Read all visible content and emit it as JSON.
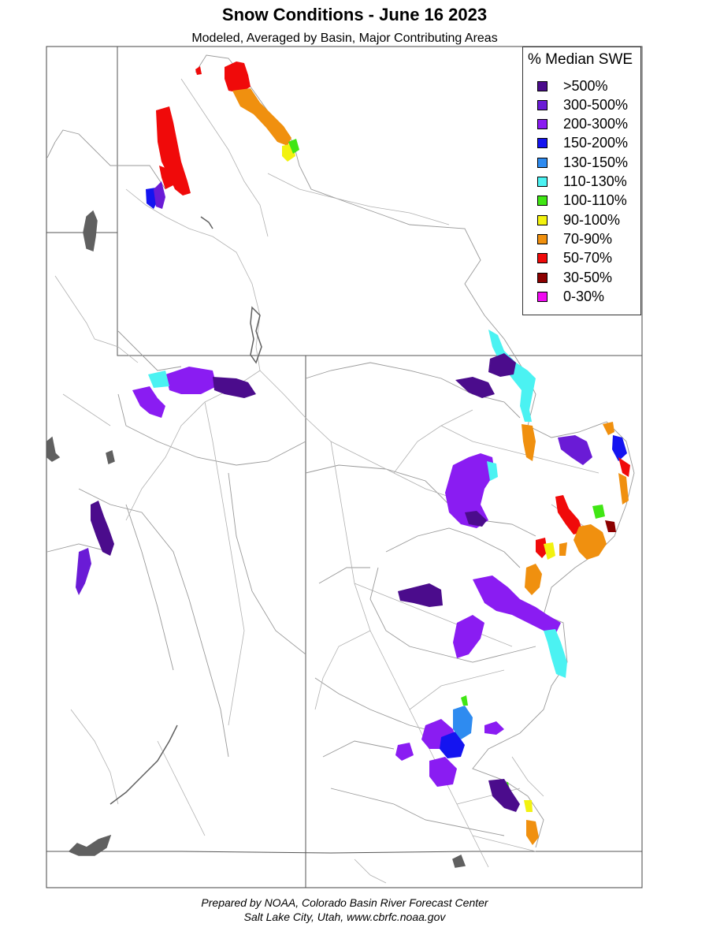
{
  "header": {
    "title": "Snow Conditions - June 16 2023",
    "subtitle": "Modeled, Averaged by Basin, Major Contributing Areas"
  },
  "legend": {
    "title": "% Median SWE",
    "items": [
      {
        "label": ">500%",
        "color": "#4b0c8c"
      },
      {
        "label": "300-500%",
        "color": "#6a1bd6"
      },
      {
        "label": "200-300%",
        "color": "#8a1cf2"
      },
      {
        "label": "150-200%",
        "color": "#1414f0"
      },
      {
        "label": "130-150%",
        "color": "#2e8bf0"
      },
      {
        "label": "110-130%",
        "color": "#4bf2f2"
      },
      {
        "label": "100-110%",
        "color": "#40e614"
      },
      {
        "label": "90-100%",
        "color": "#f2f20f"
      },
      {
        "label": "70-90%",
        "color": "#f0900f"
      },
      {
        "label": "50-70%",
        "color": "#f00a0a"
      },
      {
        "label": "30-50%",
        "color": "#8c0000"
      },
      {
        "label": "0-30%",
        "color": "#f00af0"
      }
    ]
  },
  "footer": {
    "line1": "Prepared by NOAA, Colorado Basin River Forecast Center",
    "line2": "Salt Lake City, Utah, www.cbrfc.noaa.gov"
  },
  "colors": {
    "river": "#aaaaaa",
    "border": "#555555",
    "lake": "#606060"
  }
}
